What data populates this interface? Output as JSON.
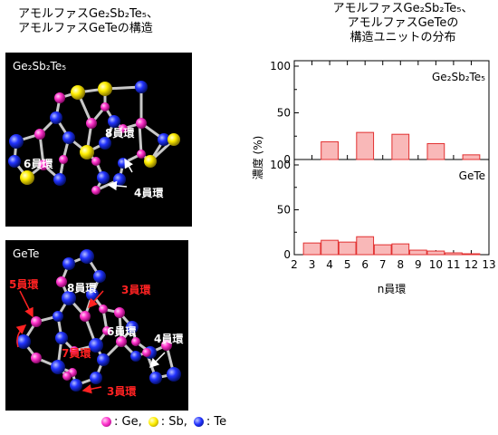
{
  "left_title": [
    "アモルファスGe₂Sb₂Te₅、",
    "アモルファスGeTeの構造"
  ],
  "right_title": [
    "アモルファスGe₂Sb₂Te₅、",
    "アモルファスGeTeの",
    "構造ユニットの分布"
  ],
  "panels": {
    "top": {
      "label": "Ge₂Sb₂Te₅",
      "ring_labels": [
        "8員環",
        "6員環",
        "4員環"
      ]
    },
    "bottom": {
      "label": "GeTe",
      "ring_labels_white": [
        "8員環",
        "6員環",
        "4員環"
      ],
      "ring_labels_red": [
        "5員環",
        "3員環",
        "7員環",
        "3員環"
      ]
    }
  },
  "legend": {
    "items": [
      {
        "label": ": Ge,",
        "color": "#ff33cc"
      },
      {
        "label": ": Sb,",
        "color": "#ffee00"
      },
      {
        "label": ": Te",
        "color": "#2233ff"
      }
    ]
  },
  "colors": {
    "ge": "#ff33cc",
    "sb": "#ffee00",
    "te": "#2233ff",
    "bar_fill": "#f9b8b8",
    "bar_stroke": "#e23030"
  },
  "chart_data": [
    {
      "type": "bar",
      "series_label": "Ge₂Sb₂Te₅",
      "x": [
        4,
        6,
        8,
        10,
        12
      ],
      "values": [
        19,
        29,
        27,
        17,
        5
      ],
      "ylim": [
        0,
        100
      ],
      "yticks": [
        "0",
        "50",
        "100"
      ]
    },
    {
      "type": "bar",
      "series_label": "GeTe",
      "x": [
        3,
        4,
        5,
        6,
        7,
        8,
        9,
        10,
        11,
        12
      ],
      "values": [
        13,
        16,
        14,
        20,
        11,
        12,
        5,
        4,
        2,
        1
      ],
      "ylim": [
        0,
        100
      ],
      "yticks": [
        "0",
        "50",
        "100"
      ]
    }
  ],
  "axis": {
    "xticks": [
      "2",
      "3",
      "4",
      "5",
      "6",
      "7",
      "8",
      "9",
      "10",
      "11",
      "12",
      "13"
    ],
    "xlabel": "n員環",
    "ylabel": "濃度 (%)"
  }
}
